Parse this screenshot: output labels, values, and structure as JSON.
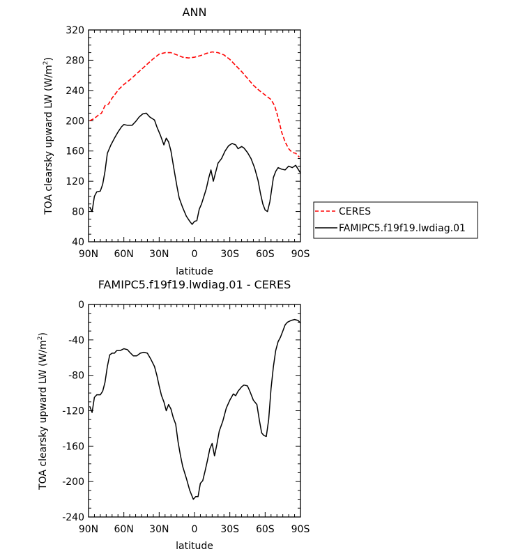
{
  "chart_data": [
    {
      "type": "line",
      "title": "ANN",
      "xlabel": "latitude",
      "ylabel": "TOA clearsky upward LW (W/m",
      "ylabel_sup": "2",
      "ylabel_end": ")",
      "xlim": [
        90,
        -90
      ],
      "ylim": [
        40,
        320
      ],
      "x_ticks": [
        90,
        60,
        30,
        0,
        -30,
        -60,
        -90
      ],
      "x_tick_labels": [
        "90N",
        "60N",
        "30N",
        "0",
        "30S",
        "60S",
        "90S"
      ],
      "y_ticks": [
        40,
        80,
        120,
        160,
        200,
        240,
        280,
        320
      ],
      "y_tick_labels": [
        "40",
        "80",
        "120",
        "160",
        "200",
        "240",
        "280",
        "320"
      ],
      "legend_position": "right",
      "series": [
        {
          "name": "CERES",
          "color": "#ff0000",
          "dash": true,
          "points": [
            [
              89,
              200
            ],
            [
              85,
              203
            ],
            [
              82,
              207
            ],
            [
              79,
              210
            ],
            [
              76,
              220
            ],
            [
              73,
              222
            ],
            [
              70,
              230
            ],
            [
              67,
              236
            ],
            [
              64,
              242
            ],
            [
              60,
              248
            ],
            [
              55,
              254
            ],
            [
              50,
              261
            ],
            [
              45,
              268
            ],
            [
              40,
              275
            ],
            [
              35,
              282
            ],
            [
              30,
              288
            ],
            [
              25,
              290
            ],
            [
              20,
              290
            ],
            [
              15,
              287
            ],
            [
              10,
              284
            ],
            [
              5,
              283
            ],
            [
              0,
              284
            ],
            [
              -5,
              286
            ],
            [
              -10,
              289
            ],
            [
              -15,
              291
            ],
            [
              -20,
              290
            ],
            [
              -25,
              287
            ],
            [
              -30,
              281
            ],
            [
              -35,
              273
            ],
            [
              -40,
              265
            ],
            [
              -45,
              256
            ],
            [
              -50,
              247
            ],
            [
              -55,
              240
            ],
            [
              -60,
              234
            ],
            [
              -65,
              228
            ],
            [
              -68,
              220
            ],
            [
              -70,
              210
            ],
            [
              -72,
              198
            ],
            [
              -74,
              185
            ],
            [
              -77,
              172
            ],
            [
              -80,
              163
            ],
            [
              -83,
              158
            ],
            [
              -86,
              157
            ],
            [
              -89,
              152
            ]
          ]
        },
        {
          "name": "FAMIPC5.f19f19.lwdiag.01",
          "color": "#000000",
          "dash": false,
          "points": [
            [
              89,
              86
            ],
            [
              87,
              80
            ],
            [
              85,
              100
            ],
            [
              83,
              106
            ],
            [
              80,
              107
            ],
            [
              78,
              116
            ],
            [
              76,
              133
            ],
            [
              74,
              157
            ],
            [
              71,
              168
            ],
            [
              68,
              177
            ],
            [
              65,
              185
            ],
            [
              62,
              192
            ],
            [
              60,
              195
            ],
            [
              57,
              194
            ],
            [
              53,
              194
            ],
            [
              50,
              199
            ],
            [
              47,
              205
            ],
            [
              44,
              209
            ],
            [
              41,
              210
            ],
            [
              38,
              205
            ],
            [
              34,
              201
            ],
            [
              32,
              192
            ],
            [
              29,
              181
            ],
            [
              26,
              168
            ],
            [
              24,
              177
            ],
            [
              22,
              172
            ],
            [
              20,
              160
            ],
            [
              17,
              132
            ],
            [
              15,
              114
            ],
            [
              13,
              98
            ],
            [
              10,
              85
            ],
            [
              7,
              74
            ],
            [
              4,
              67
            ],
            [
              2,
              63
            ],
            [
              0,
              67
            ],
            [
              -2,
              68
            ],
            [
              -4,
              83
            ],
            [
              -6,
              90
            ],
            [
              -8,
              100
            ],
            [
              -10,
              110
            ],
            [
              -12,
              124
            ],
            [
              -14,
              135
            ],
            [
              -16,
              120
            ],
            [
              -18,
              132
            ],
            [
              -20,
              144
            ],
            [
              -23,
              150
            ],
            [
              -26,
              160
            ],
            [
              -29,
              167
            ],
            [
              -32,
              170
            ],
            [
              -35,
              168
            ],
            [
              -37,
              163
            ],
            [
              -40,
              166
            ],
            [
              -42,
              164
            ],
            [
              -45,
              158
            ],
            [
              -48,
              150
            ],
            [
              -51,
              138
            ],
            [
              -54,
              121
            ],
            [
              -56,
              104
            ],
            [
              -58,
              90
            ],
            [
              -60,
              82
            ],
            [
              -62,
              80
            ],
            [
              -64,
              93
            ],
            [
              -67,
              125
            ],
            [
              -69,
              133
            ],
            [
              -71,
              138
            ],
            [
              -74,
              136
            ],
            [
              -77,
              135
            ],
            [
              -80,
              140
            ],
            [
              -83,
              138
            ],
            [
              -86,
              141
            ],
            [
              -88,
              136
            ],
            [
              -90,
              131
            ]
          ]
        }
      ]
    },
    {
      "type": "line",
      "title": "FAMIPC5.f19f19.lwdiag.01 - CERES",
      "xlabel": "latitude",
      "ylabel": "TOA clearsky upward LW (W/m",
      "ylabel_sup": "2",
      "ylabel_end": ")",
      "xlim": [
        90,
        -90
      ],
      "ylim": [
        -240,
        0
      ],
      "x_ticks": [
        90,
        60,
        30,
        0,
        -30,
        -60,
        -90
      ],
      "x_tick_labels": [
        "90N",
        "60N",
        "30N",
        "0",
        "30S",
        "60S",
        "90S"
      ],
      "y_ticks": [
        -240,
        -200,
        -160,
        -120,
        -80,
        -40,
        0
      ],
      "y_tick_labels": [
        "-240",
        "-200",
        "-160",
        "-120",
        "-80",
        "-40",
        "0"
      ],
      "series": [
        {
          "color": "#000000",
          "dash": false,
          "points": [
            [
              89,
              -115
            ],
            [
              87,
              -122
            ],
            [
              85,
              -105
            ],
            [
              83,
              -102
            ],
            [
              80,
              -102
            ],
            [
              78,
              -98
            ],
            [
              76,
              -88
            ],
            [
              74,
              -70
            ],
            [
              72,
              -57
            ],
            [
              70,
              -55
            ],
            [
              68,
              -55
            ],
            [
              66,
              -52
            ],
            [
              63,
              -52
            ],
            [
              60,
              -50
            ],
            [
              57,
              -51
            ],
            [
              55,
              -54
            ],
            [
              52,
              -58
            ],
            [
              49,
              -58
            ],
            [
              46,
              -55
            ],
            [
              43,
              -54
            ],
            [
              40,
              -55
            ],
            [
              37,
              -62
            ],
            [
              34,
              -70
            ],
            [
              32,
              -80
            ],
            [
              30,
              -92
            ],
            [
              28,
              -103
            ],
            [
              26,
              -110
            ],
            [
              24,
              -120
            ],
            [
              22,
              -113
            ],
            [
              20,
              -118
            ],
            [
              18,
              -128
            ],
            [
              16,
              -135
            ],
            [
              14,
              -155
            ],
            [
              12,
              -170
            ],
            [
              10,
              -183
            ],
            [
              7,
              -196
            ],
            [
              4,
              -210
            ],
            [
              1,
              -220
            ],
            [
              -1,
              -217
            ],
            [
              -3,
              -217
            ],
            [
              -5,
              -202
            ],
            [
              -7,
              -199
            ],
            [
              -9,
              -188
            ],
            [
              -11,
              -176
            ],
            [
              -13,
              -163
            ],
            [
              -15,
              -157
            ],
            [
              -17,
              -171
            ],
            [
              -19,
              -158
            ],
            [
              -21,
              -143
            ],
            [
              -24,
              -132
            ],
            [
              -27,
              -117
            ],
            [
              -30,
              -108
            ],
            [
              -33,
              -101
            ],
            [
              -35,
              -103
            ],
            [
              -37,
              -98
            ],
            [
              -40,
              -93
            ],
            [
              -42,
              -91
            ],
            [
              -45,
              -92
            ],
            [
              -47,
              -98
            ],
            [
              -50,
              -108
            ],
            [
              -53,
              -113
            ],
            [
              -55,
              -130
            ],
            [
              -57,
              -145
            ],
            [
              -59,
              -148
            ],
            [
              -61,
              -149
            ],
            [
              -63,
              -130
            ],
            [
              -65,
              -95
            ],
            [
              -67,
              -70
            ],
            [
              -69,
              -52
            ],
            [
              -71,
              -42
            ],
            [
              -73,
              -37
            ],
            [
              -75,
              -30
            ],
            [
              -77,
              -23
            ],
            [
              -79,
              -20
            ],
            [
              -82,
              -18
            ],
            [
              -85,
              -17
            ],
            [
              -88,
              -18
            ],
            [
              -90,
              -21
            ]
          ]
        }
      ]
    }
  ]
}
